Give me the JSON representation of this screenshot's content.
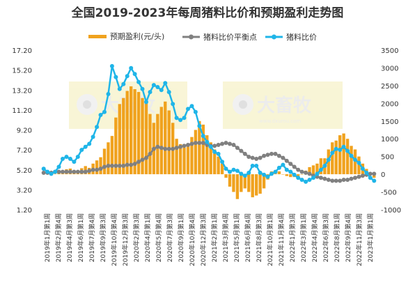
{
  "chart_data": {
    "type": "bar+line",
    "title": "全国2019-2023年每周猪料比价和预期盈利走势图",
    "legend": {
      "placement": "top",
      "items": [
        "预期盈利(元/头)",
        "猪料比价平衡点",
        "猪料比价"
      ]
    },
    "y_left": {
      "min": 1.2,
      "max": 17.2,
      "ticks": [
        "17.20",
        "15.20",
        "13.20",
        "11.20",
        "9.20",
        "7.20",
        "5.20",
        "3.20",
        "1.20"
      ]
    },
    "y_right": {
      "min": -1000,
      "max": 3500,
      "ticks": [
        "3500",
        "3000",
        "2500",
        "2000",
        "1500",
        "1000",
        "500",
        "0",
        "-500",
        "-1000"
      ]
    },
    "x_tick_labels": [
      "2019年1月第1周",
      "2019年2月第4周",
      "2019年4月第3周",
      "2019年6月第1周",
      "2019年7月第4周",
      "2019年9月第3周",
      "2019年10月第4周",
      "2019年12月第3周",
      "2020年2月第3周",
      "2020年4月第1周",
      "2020年5月第4周",
      "2020年7月第3周",
      "2020年9月第1周",
      "2020年10月第4周",
      "2020年12月第3周",
      "2021年2月第1周",
      "2021年3月第4周",
      "2021年5月第1周",
      "2021年6月第4周",
      "2021年8月第3周",
      "2021年10月第1周",
      "2021年11月第4周",
      "2022年1月第3周",
      "2022年3月第1周",
      "2022年4月第4周",
      "2022年6月第3周",
      "2022年8月第1周",
      "2022年9月第4周",
      "2022年11月第3周",
      "2023年1月第1周"
    ],
    "watermark": {
      "text": "大畜牧",
      "subtext": "www.dxumu.com"
    },
    "series": [
      {
        "name": "预期盈利(元/头)",
        "type": "bar",
        "axis": "right",
        "color": "#f0a21e",
        "values": [
          20,
          40,
          30,
          10,
          30,
          110,
          140,
          160,
          110,
          20,
          170,
          230,
          180,
          300,
          390,
          480,
          720,
          900,
          1080,
          1600,
          1980,
          2150,
          2350,
          2480,
          2400,
          2320,
          2150,
          2000,
          1700,
          1450,
          1700,
          1900,
          2050,
          1800,
          1450,
          1000,
          850,
          750,
          800,
          1050,
          1250,
          1500,
          1400,
          1100,
          900,
          700,
          500,
          300,
          -100,
          -350,
          -500,
          -700,
          -500,
          -400,
          -500,
          -650,
          -600,
          -550,
          -400,
          -150,
          80,
          100,
          80,
          0,
          -50,
          -80,
          -80,
          -50,
          0,
          100,
          200,
          250,
          300,
          450,
          450,
          700,
          900,
          950,
          1100,
          1150,
          1000,
          800,
          700,
          500,
          300,
          150,
          0,
          -100
        ]
      },
      {
        "name": "猪料比价平衡点",
        "type": "line",
        "axis": "left",
        "color": "#808080",
        "values": [
          4.9,
          4.9,
          4.9,
          5.0,
          5.0,
          5.0,
          5.0,
          5.0,
          5.0,
          5.0,
          5.0,
          5.0,
          5.1,
          5.2,
          5.2,
          5.3,
          5.5,
          5.6,
          5.6,
          5.6,
          5.6,
          5.6,
          5.7,
          5.7,
          5.8,
          6.0,
          6.2,
          6.4,
          6.8,
          7.3,
          7.5,
          7.4,
          7.3,
          7.3,
          7.3,
          7.4,
          7.5,
          7.6,
          7.7,
          7.8,
          7.9,
          7.9,
          7.9,
          7.7,
          7.6,
          7.6,
          7.7,
          7.8,
          7.9,
          7.8,
          7.7,
          7.4,
          7.1,
          6.8,
          6.5,
          6.4,
          6.3,
          6.4,
          6.6,
          6.7,
          6.8,
          6.8,
          6.6,
          6.4,
          6.1,
          5.8,
          5.5,
          5.2,
          5.0,
          4.9,
          4.8,
          4.6,
          4.5,
          4.4,
          4.3,
          4.2,
          4.1,
          4.1,
          4.1,
          4.2,
          4.2,
          4.3,
          4.4,
          4.5,
          4.6,
          4.7,
          4.8,
          4.8
        ]
      },
      {
        "name": "猪料比价",
        "type": "line",
        "axis": "left",
        "color": "#1fb5e8",
        "values": [
          5.3,
          5.0,
          4.8,
          5.0,
          5.5,
          6.3,
          6.5,
          6.3,
          6.0,
          6.5,
          7.2,
          7.5,
          7.8,
          8.5,
          9.5,
          10.7,
          11.0,
          12.8,
          15.6,
          14.5,
          13.3,
          13.8,
          14.6,
          15.4,
          14.8,
          14.0,
          13.3,
          12.0,
          13.0,
          13.7,
          13.5,
          13.2,
          13.9,
          13.0,
          11.8,
          10.4,
          10.2,
          10.4,
          11.3,
          11.6,
          11.0,
          9.6,
          8.6,
          8.0,
          7.5,
          7.0,
          6.8,
          6.0,
          5.3,
          5.0,
          5.2,
          5.1,
          4.8,
          4.6,
          4.9,
          5.6,
          5.6,
          4.9,
          4.7,
          4.5,
          4.8,
          5.0,
          5.4,
          5.7,
          5.2,
          5.0,
          4.7,
          4.4,
          4.2,
          4.0,
          4.2,
          4.4,
          4.8,
          5.2,
          5.6,
          6.2,
          6.9,
          7.3,
          7.2,
          7.5,
          7.1,
          6.6,
          6.2,
          5.9,
          5.3,
          4.9,
          4.4,
          4.1
        ]
      }
    ]
  }
}
